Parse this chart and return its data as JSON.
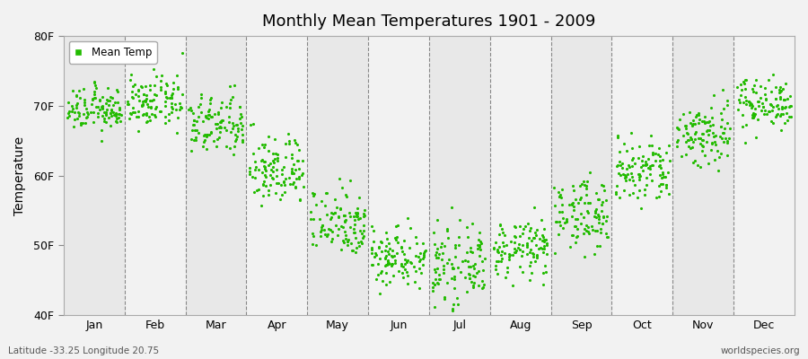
{
  "title": "Monthly Mean Temperatures 1901 - 2009",
  "ylabel": "Temperature",
  "xlabel_labels": [
    "Jan",
    "Feb",
    "Mar",
    "Apr",
    "May",
    "Jun",
    "Jul",
    "Aug",
    "Sep",
    "Oct",
    "Nov",
    "Dec"
  ],
  "ytick_labels": [
    "40F",
    "50F",
    "60F",
    "70F",
    "80F"
  ],
  "ytick_values": [
    40,
    50,
    60,
    70,
    80
  ],
  "ylim": [
    40,
    80
  ],
  "dot_color": "#22bb00",
  "background_color": "#f2f2f2",
  "plot_bg_color": "#f2f2f2",
  "band_color_light": "#f2f2f2",
  "band_color_dark": "#e8e8e8",
  "footer_left": "Latitude -33.25 Longitude 20.75",
  "footer_right": "worldspecies.org",
  "legend_label": "Mean Temp",
  "monthly_means": [
    69.5,
    70.5,
    67.2,
    60.8,
    53.5,
    48.5,
    47.0,
    49.5,
    54.5,
    60.5,
    66.0,
    70.5
  ],
  "monthly_stds": [
    1.5,
    1.8,
    2.2,
    2.5,
    2.5,
    2.2,
    2.5,
    2.0,
    2.5,
    2.5,
    2.5,
    1.8
  ],
  "n_points": 109,
  "seed": 12345
}
